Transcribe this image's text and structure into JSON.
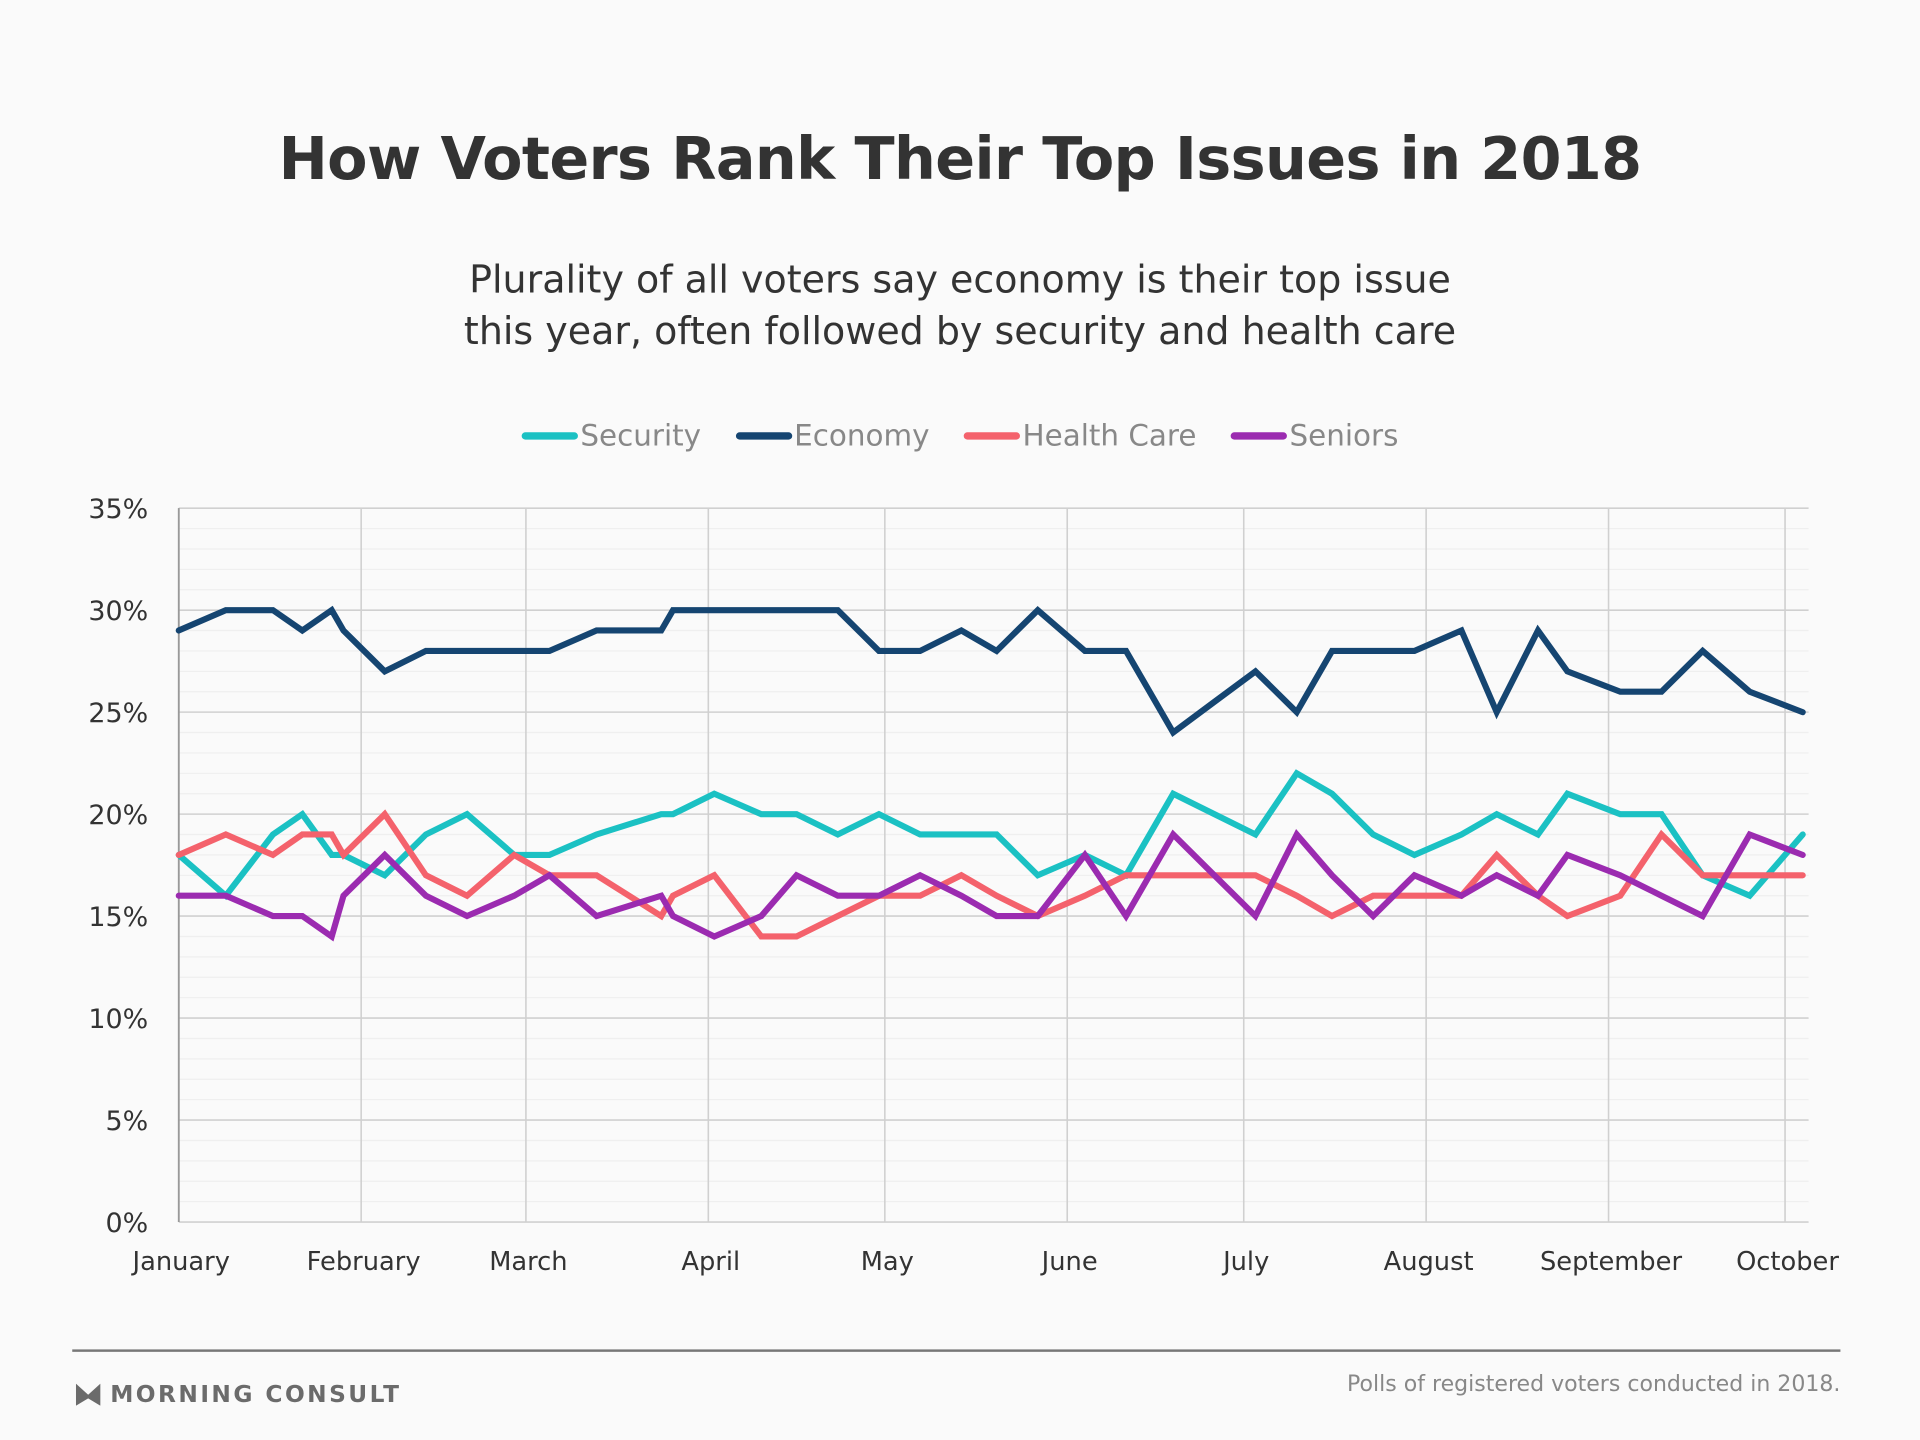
{
  "chart_data": {
    "type": "line",
    "title": "How Voters Rank Their Top Issues in 2018",
    "subtitle": [
      "Plurality of all voters say economy is their top issue",
      "this year, often followed by security and health care"
    ],
    "xlabel": "",
    "ylabel": "",
    "x_unit": "day of year 2018 (Jan 1 = 0)",
    "xlim": [
      0,
      277
    ],
    "ylim": [
      0,
      35
    ],
    "grid": true,
    "legend_position": "top-center",
    "y_ticks": [
      0,
      5,
      10,
      15,
      20,
      25,
      30,
      35
    ],
    "y_tick_labels": [
      "0%",
      "5%",
      "10%",
      "15%",
      "20%",
      "25%",
      "30%",
      "35%"
    ],
    "x_ticks": [
      0,
      31,
      59,
      90,
      120,
      151,
      181,
      212,
      243,
      273
    ],
    "x_tick_labels": [
      "January",
      "February",
      "March",
      "April",
      "May",
      "June",
      "July",
      "August",
      "September",
      "October"
    ],
    "x": [
      0,
      8,
      16,
      21,
      26,
      28,
      35,
      42,
      49,
      57,
      63,
      71,
      82,
      84,
      91,
      99,
      105,
      112,
      119,
      126,
      133,
      139,
      146,
      154,
      161,
      169,
      176,
      183,
      190,
      196,
      203,
      210,
      218,
      224,
      231,
      236,
      245,
      252,
      259,
      267,
      276
    ],
    "series": [
      {
        "name": "Security",
        "color": "#1bc1c3",
        "values": [
          18,
          16,
          19,
          20,
          18,
          18,
          17,
          19,
          20,
          18,
          18,
          19,
          20,
          20,
          21,
          20,
          20,
          19,
          20,
          19,
          19,
          19,
          17,
          18,
          17,
          21,
          20,
          19,
          22,
          21,
          19,
          18,
          19,
          20,
          19,
          21,
          20,
          20,
          17,
          16,
          19
        ]
      },
      {
        "name": "Economy",
        "color": "#154571",
        "values": [
          29,
          30,
          30,
          29,
          30,
          29,
          27,
          28,
          28,
          28,
          28,
          29,
          29,
          30,
          30,
          30,
          30,
          30,
          28,
          28,
          29,
          28,
          30,
          28,
          28,
          24,
          25.5,
          27,
          25,
          28,
          28,
          28,
          29,
          25,
          29,
          27,
          26,
          26,
          28,
          26,
          25
        ]
      },
      {
        "name": "Health Care",
        "color": "#f4626c",
        "values": [
          18,
          19,
          18,
          19,
          19,
          18,
          20,
          17,
          16,
          18,
          17,
          17,
          15,
          16,
          17,
          14,
          14,
          15,
          16,
          16,
          17,
          16,
          15,
          16,
          17,
          17,
          17,
          17,
          16,
          15,
          16,
          16,
          16,
          18,
          16,
          15,
          16,
          19,
          17,
          17,
          17
        ]
      },
      {
        "name": "Seniors",
        "color": "#9b2bb0",
        "values": [
          16,
          16,
          15,
          15,
          14,
          16,
          18,
          16,
          15,
          16,
          17,
          15,
          16,
          15,
          14,
          15,
          17,
          16,
          16,
          17,
          16,
          15,
          15,
          18,
          15,
          19,
          17,
          15,
          19,
          17,
          15,
          17,
          16,
          17,
          16,
          18,
          17,
          16,
          15,
          19,
          18
        ]
      }
    ]
  },
  "footer": {
    "brand": "MORNING CONSULT",
    "source": "Polls of registered voters conducted in 2018."
  }
}
